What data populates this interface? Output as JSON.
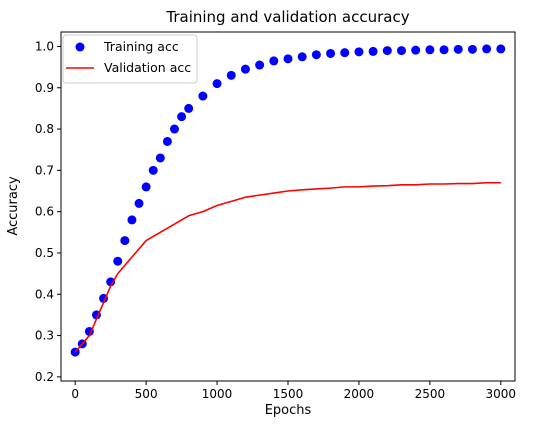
{
  "chart_data": {
    "type": "line",
    "title": "Training and validation accuracy",
    "xlabel": "Epochs",
    "ylabel": "Accuracy",
    "xlim": [
      -100,
      3100
    ],
    "ylim": [
      0.19,
      1.035
    ],
    "x_ticks": [
      0,
      500,
      1000,
      1500,
      2000,
      2500,
      3000
    ],
    "y_ticks": [
      0.2,
      0.3,
      0.4,
      0.5,
      0.6,
      0.7,
      0.8,
      0.9,
      1.0
    ],
    "x_tick_labels": [
      "0",
      "500",
      "1000",
      "1500",
      "2000",
      "2500",
      "3000"
    ],
    "y_tick_labels": [
      "0.2",
      "0.3",
      "0.4",
      "0.5",
      "0.6",
      "0.7",
      "0.8",
      "0.9",
      "1.0"
    ],
    "grid": false,
    "legend_position": "top-left",
    "series": [
      {
        "name": "Training acc",
        "style": "points",
        "color": "#0000ff",
        "x": [
          0,
          50,
          100,
          150,
          200,
          250,
          300,
          350,
          400,
          450,
          500,
          550,
          600,
          650,
          700,
          750,
          800,
          900,
          1000,
          1100,
          1200,
          1300,
          1400,
          1500,
          1600,
          1700,
          1800,
          1900,
          2000,
          2100,
          2200,
          2300,
          2400,
          2500,
          2600,
          2700,
          2800,
          2900,
          3000
        ],
        "y": [
          0.26,
          0.28,
          0.31,
          0.35,
          0.39,
          0.43,
          0.48,
          0.53,
          0.58,
          0.62,
          0.66,
          0.7,
          0.73,
          0.77,
          0.8,
          0.83,
          0.85,
          0.88,
          0.91,
          0.93,
          0.945,
          0.955,
          0.965,
          0.97,
          0.975,
          0.98,
          0.983,
          0.985,
          0.987,
          0.988,
          0.99,
          0.99,
          0.991,
          0.992,
          0.992,
          0.993,
          0.993,
          0.994,
          0.994
        ]
      },
      {
        "name": "Validation acc",
        "style": "line",
        "color": "#ff0000",
        "x": [
          0,
          50,
          100,
          150,
          200,
          250,
          300,
          350,
          400,
          450,
          500,
          550,
          600,
          650,
          700,
          750,
          800,
          900,
          1000,
          1100,
          1200,
          1300,
          1400,
          1500,
          1600,
          1700,
          1800,
          1900,
          2000,
          2100,
          2200,
          2300,
          2400,
          2500,
          2600,
          2700,
          2800,
          2900,
          3000
        ],
        "y": [
          0.26,
          0.28,
          0.3,
          0.34,
          0.38,
          0.42,
          0.45,
          0.47,
          0.49,
          0.51,
          0.53,
          0.54,
          0.55,
          0.56,
          0.57,
          0.58,
          0.59,
          0.6,
          0.615,
          0.625,
          0.635,
          0.64,
          0.645,
          0.65,
          0.653,
          0.655,
          0.657,
          0.66,
          0.66,
          0.662,
          0.663,
          0.665,
          0.665,
          0.667,
          0.667,
          0.668,
          0.668,
          0.67,
          0.67
        ]
      }
    ]
  }
}
